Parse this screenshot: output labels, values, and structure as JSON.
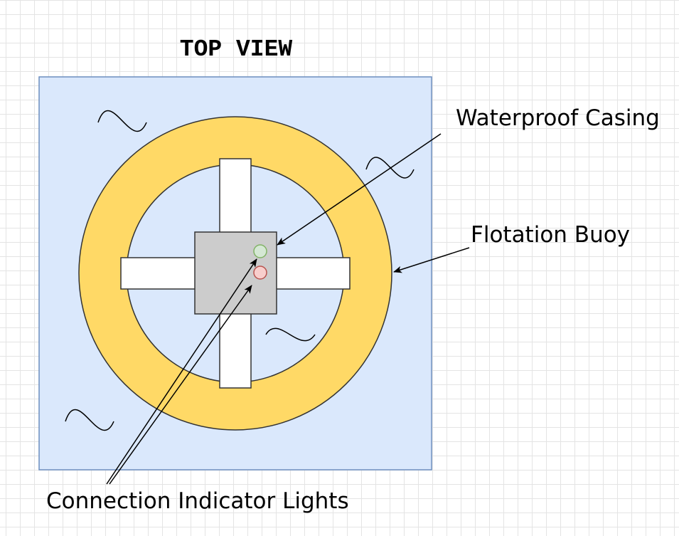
{
  "title": "TOP VIEW",
  "labels": {
    "waterproof_casing": "Waterproof Casing",
    "flotation_buoy": "Flotation Buoy",
    "connection_lights": "Connection Indicator Lights"
  },
  "colors": {
    "water": "#dae8fc",
    "water_border": "#6c8ebf",
    "buoy": "#ffd966",
    "frame": "#ffffff",
    "casing": "#cccccc",
    "light_green": "#d5e8d4",
    "light_green_border": "#82b366",
    "light_red": "#f8cecc",
    "light_red_border": "#b85450"
  }
}
